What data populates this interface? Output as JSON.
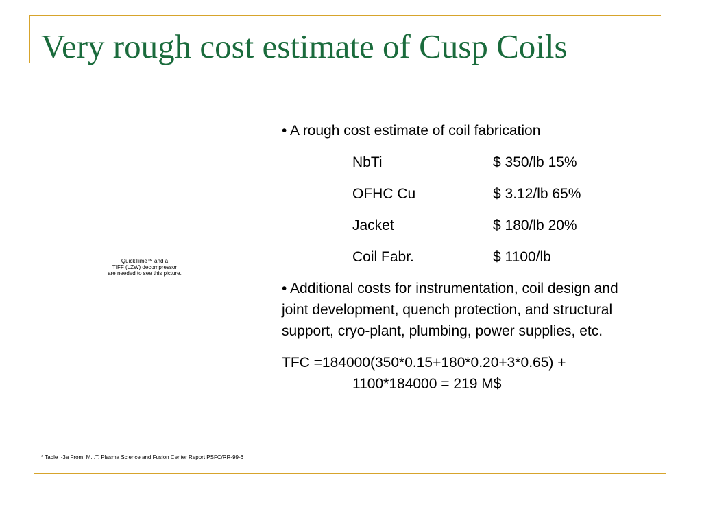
{
  "slide": {
    "title": "Very rough cost estimate of Cusp Coils",
    "image_placeholder": {
      "line1": "QuickTime™ and a",
      "line2": "TIFF (LZW) decompressor",
      "line3": "are needed to see this picture."
    },
    "bullet1": "• A rough cost estimate of coil fabrication",
    "cost_rows": [
      {
        "name": "NbTi",
        "cost": "$ 350/lb 15%"
      },
      {
        "name": "OFHC Cu",
        "cost": "$ 3.12/lb 65%"
      },
      {
        "name": "Jacket",
        "cost": "$ 180/lb  20%"
      },
      {
        "name": "Coil Fabr.",
        "cost": "$ 1100/lb"
      }
    ],
    "bullet2": "• Additional costs for instrumentation, coil design and joint development, quench protection, and structural support, cryo-plant, plumbing, power supplies, etc.",
    "tfc_line1": "TFC =184000(350*0.15+180*0.20+3*0.65) +",
    "tfc_line2": "1100*184000 = 219 M$",
    "footnote": "* Table I-3a From: M.I.T. Plasma Science and Fusion Center Report PSFC/RR-99-6"
  },
  "colors": {
    "title": "#1a6b3c",
    "accent_lines": "#d7a42c",
    "text": "#000000",
    "background": "#ffffff"
  }
}
